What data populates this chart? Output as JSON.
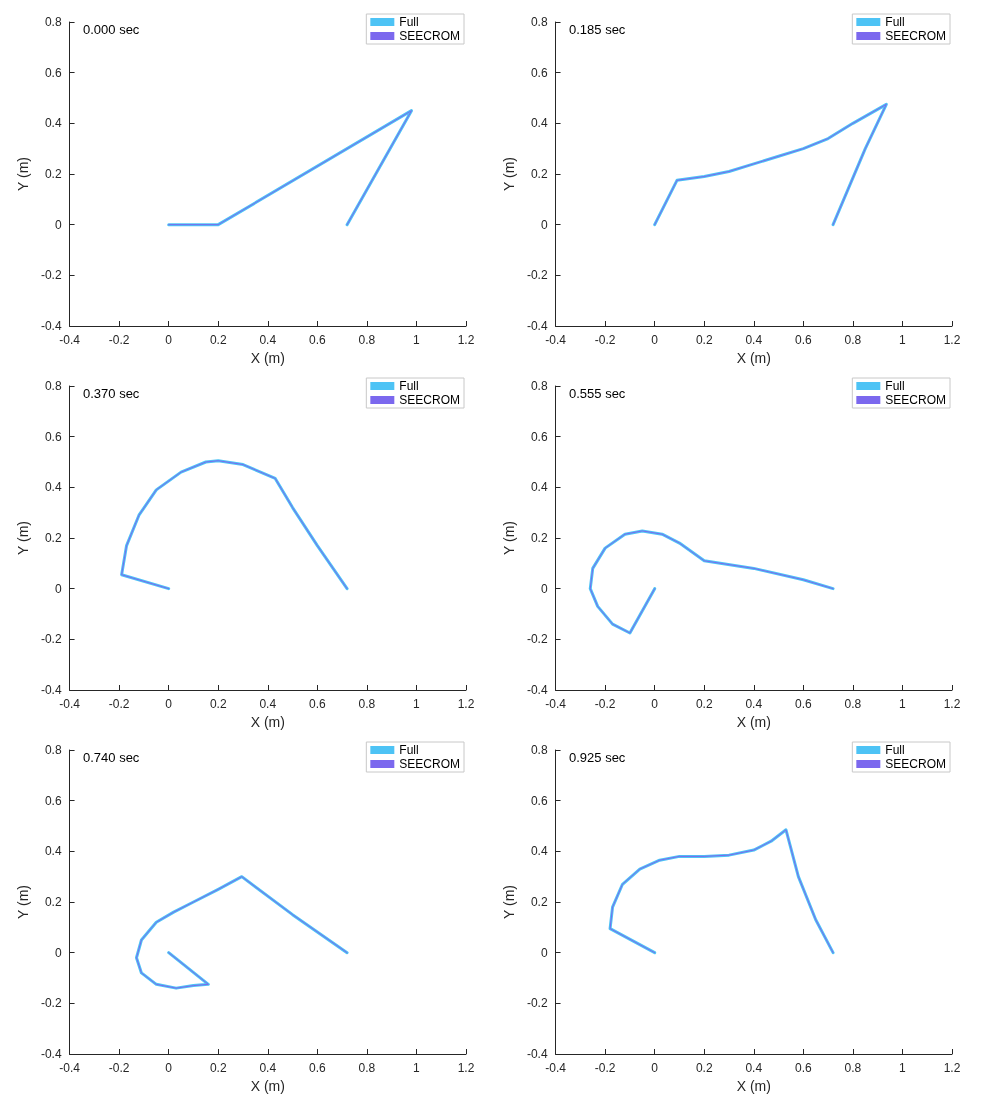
{
  "chart_data": [
    {
      "type": "line",
      "title": "0.000 sec",
      "xlabel": "X (m)",
      "ylabel": "Y (m)",
      "xlim": [
        -0.4,
        1.2
      ],
      "ylim": [
        -0.4,
        0.8
      ],
      "xticks": [
        -0.4,
        -0.2,
        0,
        0.2,
        0.4,
        0.6,
        0.8,
        1,
        1.2
      ],
      "yticks": [
        -0.4,
        -0.2,
        0,
        0.2,
        0.4,
        0.6,
        0.8
      ],
      "grid": false,
      "legend": "top right",
      "marker": "none",
      "line_style": "solid",
      "series": [
        {
          "name": "Full",
          "color": "#4dc3f5",
          "x": [
            0,
            0.2,
            0.98,
            0.72
          ],
          "values": [
            0,
            0,
            0.45,
            0
          ]
        },
        {
          "name": "SEECROM",
          "color": "#7b68ee",
          "x": [
            0,
            0.2,
            0.98,
            0.72
          ],
          "values": [
            0,
            0,
            0.45,
            0
          ]
        }
      ]
    },
    {
      "type": "line",
      "title": "0.185 sec",
      "xlabel": "X (m)",
      "ylabel": "Y (m)",
      "xlim": [
        -0.4,
        1.2
      ],
      "ylim": [
        -0.4,
        0.8
      ],
      "xticks": [
        -0.4,
        -0.2,
        0,
        0.2,
        0.4,
        0.6,
        0.8,
        1,
        1.2
      ],
      "yticks": [
        -0.4,
        -0.2,
        0,
        0.2,
        0.4,
        0.6,
        0.8
      ],
      "grid": false,
      "legend": "top right",
      "marker": "none",
      "line_style": "solid",
      "series": [
        {
          "name": "Full",
          "color": "#4dc3f5",
          "x": [
            0,
            0.09,
            0.2,
            0.3,
            0.4,
            0.5,
            0.6,
            0.7,
            0.8,
            0.935,
            0.85,
            0.72
          ],
          "values": [
            0,
            0.175,
            0.19,
            0.21,
            0.24,
            0.27,
            0.3,
            0.34,
            0.4,
            0.475,
            0.3,
            0
          ]
        },
        {
          "name": "SEECROM",
          "color": "#7b68ee",
          "x": [
            0,
            0.09,
            0.2,
            0.3,
            0.4,
            0.5,
            0.6,
            0.7,
            0.8,
            0.935,
            0.85,
            0.72
          ],
          "values": [
            0,
            0.175,
            0.19,
            0.21,
            0.24,
            0.27,
            0.3,
            0.34,
            0.4,
            0.475,
            0.3,
            0
          ]
        }
      ]
    },
    {
      "type": "line",
      "title": "0.370 sec",
      "xlabel": "X (m)",
      "ylabel": "Y (m)",
      "xlim": [
        -0.4,
        1.2
      ],
      "ylim": [
        -0.4,
        0.8
      ],
      "xticks": [
        -0.4,
        -0.2,
        0,
        0.2,
        0.4,
        0.6,
        0.8,
        1,
        1.2
      ],
      "yticks": [
        -0.4,
        -0.2,
        0,
        0.2,
        0.4,
        0.6,
        0.8
      ],
      "grid": false,
      "legend": "top right",
      "marker": "none",
      "line_style": "solid",
      "series": [
        {
          "name": "Full",
          "color": "#4dc3f5",
          "x": [
            0,
            -0.19,
            -0.17,
            -0.12,
            -0.05,
            0.05,
            0.15,
            0.2,
            0.3,
            0.43,
            0.5,
            0.6,
            0.72
          ],
          "values": [
            0,
            0.055,
            0.17,
            0.29,
            0.39,
            0.46,
            0.5,
            0.505,
            0.49,
            0.435,
            0.32,
            0.17,
            0
          ]
        },
        {
          "name": "SEECROM",
          "color": "#7b68ee",
          "x": [
            0,
            -0.19,
            -0.17,
            -0.12,
            -0.05,
            0.05,
            0.15,
            0.2,
            0.3,
            0.43,
            0.5,
            0.6,
            0.72
          ],
          "values": [
            0,
            0.055,
            0.17,
            0.29,
            0.39,
            0.46,
            0.5,
            0.505,
            0.49,
            0.435,
            0.32,
            0.17,
            0
          ]
        }
      ]
    },
    {
      "type": "line",
      "title": "0.555 sec",
      "xlabel": "X (m)",
      "ylabel": "Y (m)",
      "xlim": [
        -0.4,
        1.2
      ],
      "ylim": [
        -0.4,
        0.8
      ],
      "xticks": [
        -0.4,
        -0.2,
        0,
        0.2,
        0.4,
        0.6,
        0.8,
        1,
        1.2
      ],
      "yticks": [
        -0.4,
        -0.2,
        0,
        0.2,
        0.4,
        0.6,
        0.8
      ],
      "grid": false,
      "legend": "top right",
      "marker": "none",
      "line_style": "solid",
      "series": [
        {
          "name": "Full",
          "color": "#4dc3f5",
          "x": [
            0,
            -0.1,
            -0.17,
            -0.23,
            -0.26,
            -0.25,
            -0.2,
            -0.12,
            -0.05,
            0.03,
            0.1,
            0.2,
            0.4,
            0.6,
            0.72
          ],
          "values": [
            0,
            -0.175,
            -0.14,
            -0.07,
            0,
            0.08,
            0.16,
            0.215,
            0.228,
            0.215,
            0.18,
            0.11,
            0.08,
            0.035,
            0
          ]
        },
        {
          "name": "SEECROM",
          "color": "#7b68ee",
          "x": [
            0,
            -0.1,
            -0.17,
            -0.23,
            -0.26,
            -0.25,
            -0.2,
            -0.12,
            -0.05,
            0.03,
            0.1,
            0.2,
            0.4,
            0.6,
            0.72
          ],
          "values": [
            0,
            -0.175,
            -0.14,
            -0.07,
            0,
            0.08,
            0.16,
            0.215,
            0.228,
            0.215,
            0.18,
            0.11,
            0.08,
            0.035,
            0
          ]
        }
      ]
    },
    {
      "type": "line",
      "title": "0.740 sec",
      "xlabel": "X (m)",
      "ylabel": "Y (m)",
      "xlim": [
        -0.4,
        1.2
      ],
      "ylim": [
        -0.4,
        0.8
      ],
      "xticks": [
        -0.4,
        -0.2,
        0,
        0.2,
        0.4,
        0.6,
        0.8,
        1,
        1.2
      ],
      "yticks": [
        -0.4,
        -0.2,
        0,
        0.2,
        0.4,
        0.6,
        0.8
      ],
      "grid": false,
      "legend": "top right",
      "marker": "none",
      "line_style": "solid",
      "series": [
        {
          "name": "Full",
          "color": "#4dc3f5",
          "x": [
            0,
            0.16,
            0.1,
            0.03,
            -0.05,
            -0.11,
            -0.13,
            -0.11,
            -0.05,
            0.02,
            0.1,
            0.2,
            0.295,
            0.5,
            0.72
          ],
          "values": [
            0,
            -0.125,
            -0.13,
            -0.14,
            -0.125,
            -0.08,
            -0.02,
            0.05,
            0.12,
            0.16,
            0.2,
            0.25,
            0.3,
            0.15,
            0
          ]
        },
        {
          "name": "SEECROM",
          "color": "#7b68ee",
          "x": [
            0,
            0.16,
            0.1,
            0.03,
            -0.05,
            -0.11,
            -0.13,
            -0.11,
            -0.05,
            0.02,
            0.1,
            0.2,
            0.295,
            0.5,
            0.72
          ],
          "values": [
            0,
            -0.125,
            -0.13,
            -0.14,
            -0.125,
            -0.08,
            -0.02,
            0.05,
            0.12,
            0.16,
            0.2,
            0.25,
            0.3,
            0.15,
            0
          ]
        }
      ]
    },
    {
      "type": "line",
      "title": "0.925 sec",
      "xlabel": "X (m)",
      "ylabel": "Y (m)",
      "xlim": [
        -0.4,
        1.2
      ],
      "ylim": [
        -0.4,
        0.8
      ],
      "xticks": [
        -0.4,
        -0.2,
        0,
        0.2,
        0.4,
        0.6,
        0.8,
        1,
        1.2
      ],
      "yticks": [
        -0.4,
        -0.2,
        0,
        0.2,
        0.4,
        0.6,
        0.8
      ],
      "grid": false,
      "legend": "top right",
      "marker": "none",
      "line_style": "solid",
      "series": [
        {
          "name": "Full",
          "color": "#4dc3f5",
          "x": [
            0,
            -0.18,
            -0.17,
            -0.13,
            -0.06,
            0.02,
            0.1,
            0.2,
            0.3,
            0.4,
            0.47,
            0.53,
            0.58,
            0.65,
            0.72
          ],
          "values": [
            0,
            0.095,
            0.18,
            0.27,
            0.33,
            0.365,
            0.38,
            0.38,
            0.385,
            0.405,
            0.44,
            0.485,
            0.3,
            0.13,
            0
          ]
        },
        {
          "name": "SEECROM",
          "color": "#7b68ee",
          "x": [
            0,
            -0.18,
            -0.17,
            -0.13,
            -0.06,
            0.02,
            0.1,
            0.2,
            0.3,
            0.4,
            0.47,
            0.53,
            0.58,
            0.65,
            0.72
          ],
          "values": [
            0,
            0.095,
            0.18,
            0.27,
            0.33,
            0.365,
            0.38,
            0.38,
            0.385,
            0.405,
            0.44,
            0.485,
            0.3,
            0.13,
            0
          ]
        }
      ]
    }
  ]
}
